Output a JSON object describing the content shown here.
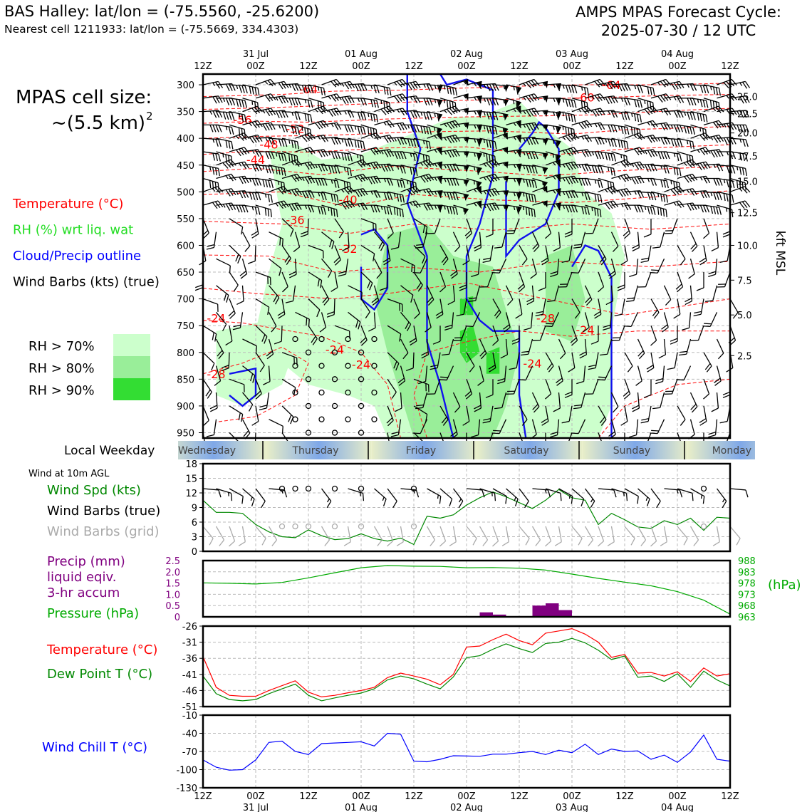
{
  "header": {
    "station": "BAS Halley: lat/lon = (-75.5560, -25.6200)",
    "nearest_cell": "Nearest cell 1211933: lat/lon = (-75.5669, 334.4303)",
    "cycle_line1": "AMPS MPAS Forecast Cycle:",
    "cycle_line2": "2025-07-30 / 12 UTC"
  },
  "legend": {
    "cell_size_label": "MPAS cell size:",
    "cell_size_value": "~(5.5 km)",
    "cell_size_exp": "2",
    "items": [
      {
        "text": "Temperature (°C)",
        "color": "#ff0000"
      },
      {
        "text": "RH (%) wrt liq. wat",
        "color": "#22dd22"
      },
      {
        "text": "Cloud/Precip outline",
        "color": "#0000ff"
      },
      {
        "text": "Wind Barbs (kts) (true)",
        "color": "#000000"
      }
    ],
    "rh_swatches": [
      {
        "text": "RH > 70%",
        "color": "#ccffcc"
      },
      {
        "text": "RH > 80%",
        "color": "#99ee99"
      },
      {
        "text": "RH > 90%",
        "color": "#33dd33"
      }
    ]
  },
  "time_axis": {
    "top_labels": [
      "12Z",
      "00Z",
      "12Z",
      "00Z",
      "12Z",
      "00Z",
      "12Z",
      "00Z",
      "12Z",
      "00Z",
      "12Z"
    ],
    "date_labels": [
      "31 Jul",
      "01 Aug",
      "02 Aug",
      "03 Aug",
      "04 Aug"
    ],
    "date_label_positions": [
      1,
      3,
      5,
      7,
      9
    ],
    "bottom_labels": [
      "12Z",
      "00Z",
      "12Z",
      "00Z",
      "12Z",
      "00Z",
      "12Z",
      "00Z",
      "12Z",
      "00Z",
      "12Z"
    ]
  },
  "weekday": {
    "label": "Local Weekday",
    "days": [
      "Wednesday",
      "Thursday",
      "Friday",
      "Saturday",
      "Sunday",
      "Monday"
    ]
  },
  "chart_data": [
    {
      "type": "heatmap",
      "panel": "time-height cross section",
      "ylabel_left": "",
      "ylabel_right": "kft MSL",
      "pressure_ticks": [
        300,
        350,
        400,
        450,
        500,
        550,
        600,
        650,
        700,
        750,
        800,
        850,
        900,
        950
      ],
      "kft_ticks": [
        "25.0",
        "22.5",
        "20.0",
        "17.5",
        "15.0",
        "12.5",
        "10.0",
        "7.5",
        "5.0",
        "2.5"
      ],
      "kft_tick_pressures": [
        322,
        354,
        390,
        433,
        480,
        539,
        600,
        665,
        730,
        806
      ],
      "ylim": [
        960,
        280
      ],
      "temperature_contour_labels": [
        {
          "text": "-64",
          "t": 8,
          "p": 310
        },
        {
          "text": "-56",
          "t": 3,
          "p": 367
        },
        {
          "text": "-52",
          "t": 7,
          "p": 384
        },
        {
          "text": "-48",
          "t": 5,
          "p": 413
        },
        {
          "text": "-44",
          "t": 4,
          "p": 442
        },
        {
          "text": "-40",
          "t": 11,
          "p": 516
        },
        {
          "text": "-36",
          "t": 7,
          "p": 554
        },
        {
          "text": "-32",
          "t": 11,
          "p": 608
        },
        {
          "text": "-60",
          "t": 29,
          "p": 325
        },
        {
          "text": "-64",
          "t": 31,
          "p": 302
        },
        {
          "text": "-28",
          "t": 26,
          "p": 738
        },
        {
          "text": "-24",
          "t": 29,
          "p": 760
        },
        {
          "text": "-24",
          "t": 10,
          "p": 796
        },
        {
          "text": "-24",
          "t": 12,
          "p": 824
        },
        {
          "text": "-24",
          "t": 25,
          "p": 822
        },
        {
          "text": "-24",
          "t": 1,
          "p": 738
        },
        {
          "text": "-28",
          "t": 1,
          "p": 842
        }
      ]
    },
    {
      "type": "line",
      "panel": "surface wind",
      "title": "Wind at 10m AGL",
      "legend": [
        {
          "text": "Wind Spd (kts)",
          "color": "#008800"
        },
        {
          "text": "Wind Barbs (true)",
          "color": "#000000"
        },
        {
          "text": "Wind Barbs (grid)",
          "color": "#aaaaaa"
        }
      ],
      "ylim": [
        0,
        18
      ],
      "yticks": [
        0,
        3,
        6,
        9,
        12,
        15,
        18
      ],
      "x": [
        0,
        1,
        2,
        3,
        4,
        5,
        6,
        7,
        8,
        9,
        10,
        11,
        12,
        13,
        14,
        15,
        16,
        17,
        18,
        19,
        20,
        21,
        22,
        23,
        24,
        25,
        26,
        27,
        28,
        29,
        30,
        31,
        32,
        33,
        34,
        35,
        36,
        37,
        38,
        39,
        40
      ],
      "series": [
        {
          "name": "Wind Spd (kts)",
          "color": "#008800",
          "values": [
            10.5,
            8,
            8,
            7.8,
            5.5,
            4,
            3,
            2.8,
            4.4,
            3.2,
            2.4,
            2.6,
            3.6,
            2.6,
            2.1,
            2.7,
            1.4,
            7.2,
            6.8,
            7.5,
            9.5,
            11,
            12.2,
            11.2,
            10,
            8.8,
            10.5,
            12.7,
            11,
            10.5,
            5.5,
            7.8,
            6.5,
            5,
            4.7,
            6.3,
            5.5,
            6.8,
            4.3,
            7,
            6.8
          ]
        }
      ]
    },
    {
      "type": "line",
      "panel": "precip and pressure",
      "legend": [
        {
          "text": "Precip (mm)",
          "color": "#800080"
        },
        {
          "text": "liquid eqiv.",
          "color": "#800080"
        },
        {
          "text": "3-hr accum",
          "color": "#800080"
        },
        {
          "text": "Pressure (hPa)",
          "color": "#00aa00"
        }
      ],
      "right_unit": "(hPa)",
      "precip_ylim": [
        0,
        2.5
      ],
      "precip_yticks": [
        "0",
        "0.5",
        "1.0",
        "1.5",
        "2.0",
        "2.5"
      ],
      "pressure_ylim": [
        963,
        988
      ],
      "pressure_yticks": [
        "963",
        "968",
        "973",
        "978",
        "983",
        "988"
      ],
      "precip": [
        {
          "t": 21,
          "v": 0.2
        },
        {
          "t": 22,
          "v": 0.1
        },
        {
          "t": 25,
          "v": 0.5
        },
        {
          "t": 26,
          "v": 0.6
        },
        {
          "t": 27,
          "v": 0.3
        }
      ],
      "pressure": {
        "x": [
          0,
          2,
          4,
          6,
          8,
          10,
          12,
          14,
          16,
          18,
          20,
          22,
          24,
          26,
          28,
          30,
          32,
          34,
          36,
          38,
          40
        ],
        "values": [
          978.1,
          977.9,
          977.6,
          978.3,
          980.3,
          982.6,
          984.8,
          985.8,
          985.5,
          985.4,
          984.8,
          984.9,
          984.6,
          983.8,
          982,
          980.1,
          978.4,
          976.8,
          974.2,
          970.4,
          964.2
        ]
      }
    },
    {
      "type": "line",
      "panel": "temperature",
      "legend": [
        {
          "text": "Temperature (°C)",
          "color": "#ff0000"
        },
        {
          "text": "Dew Point T (°C)",
          "color": "#008800"
        }
      ],
      "ylim": [
        -51,
        -26
      ],
      "yticks": [
        -51,
        -46,
        -41,
        -36,
        -31,
        -26
      ],
      "x": [
        0,
        1,
        2,
        3,
        4,
        5,
        6,
        7,
        8,
        9,
        10,
        11,
        12,
        13,
        14,
        15,
        16,
        17,
        18,
        19,
        20,
        21,
        22,
        23,
        24,
        25,
        26,
        27,
        28,
        29,
        30,
        31,
        32,
        33,
        34,
        35,
        36,
        37,
        38,
        39,
        40
      ],
      "series": [
        {
          "name": "Temperature (°C)",
          "color": "#ff0000",
          "values": [
            -35.5,
            -45,
            -47.5,
            -47.8,
            -47.8,
            -46,
            -44.5,
            -43,
            -46.5,
            -48,
            -47.5,
            -46.7,
            -46,
            -45,
            -42,
            -40.6,
            -41.5,
            -42.5,
            -44.2,
            -41,
            -32.5,
            -32.2,
            -30.2,
            -28.5,
            -30.5,
            -31.8,
            -28.2,
            -27.5,
            -26.8,
            -28.5,
            -31,
            -35.7,
            -34.8,
            -40.6,
            -40.4,
            -41.5,
            -40.2,
            -43.2,
            -39,
            -41.5,
            -40.8
          ]
        },
        {
          "name": "Dew Point T (°C)",
          "color": "#008800",
          "values": [
            -41.5,
            -47,
            -48.8,
            -49.2,
            -48.8,
            -47,
            -45.5,
            -44,
            -47.5,
            -49.2,
            -48.3,
            -47.5,
            -46.8,
            -45.5,
            -42.7,
            -41.5,
            -42.4,
            -44,
            -45.5,
            -41.8,
            -35.8,
            -35.2,
            -33.2,
            -31.5,
            -33,
            -34.2,
            -31.4,
            -31,
            -29.8,
            -31.2,
            -33.5,
            -36.4,
            -35.3,
            -41.9,
            -41.5,
            -43.2,
            -40.8,
            -45,
            -40,
            -42.7,
            -44.6
          ]
        }
      ]
    },
    {
      "type": "line",
      "panel": "wind chill",
      "legend": [
        {
          "text": "Wind Chill T (°C)",
          "color": "#0000ff"
        }
      ],
      "ylim": [
        -130,
        -10
      ],
      "yticks": [
        -130,
        -100,
        -70,
        -40,
        -10
      ],
      "x": [
        0,
        1,
        2,
        3,
        4,
        5,
        6,
        7,
        8,
        9,
        10,
        11,
        12,
        13,
        14,
        15,
        16,
        17,
        18,
        19,
        20,
        21,
        22,
        23,
        24,
        25,
        26,
        27,
        28,
        29,
        30,
        31,
        32,
        33,
        34,
        35,
        36,
        37,
        38,
        39,
        40
      ],
      "series": [
        {
          "name": "Wind Chill T (°C)",
          "color": "#0000ff",
          "values": [
            -84,
            -96,
            -101,
            -100,
            -84,
            -55,
            -53,
            -70,
            -75,
            -57,
            -56,
            -55,
            -54,
            -61,
            -40,
            -41.5,
            -86,
            -87,
            -83,
            -77,
            -77.5,
            -78,
            -74.5,
            -74.5,
            -72,
            -70,
            -75,
            -68,
            -72,
            -58,
            -75,
            -66,
            -70,
            -69,
            -83,
            -76,
            -88,
            -71,
            -43,
            -83,
            -86
          ]
        }
      ]
    }
  ]
}
